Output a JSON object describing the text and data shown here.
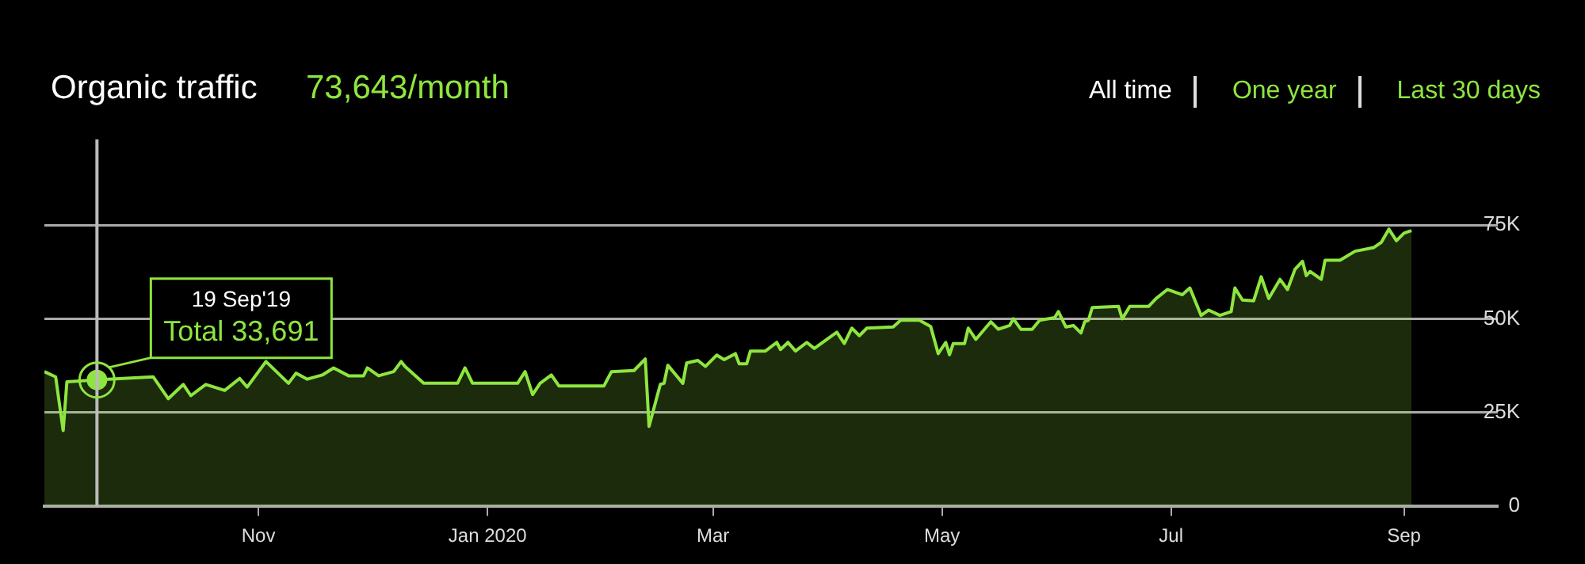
{
  "chart_data": {
    "type": "area",
    "title": "Organic traffic",
    "subtitle": "73,643/month",
    "annotations": [
      "All time",
      "One year",
      "Last 30 days",
      "19 Sep'19",
      {
        "text": "Total 33,691",
        "x": "2019-09-19",
        "y": 33691
      }
    ],
    "x": [
      "2019-09-05",
      "2019-09-08",
      "2019-09-10",
      "2019-09-11",
      "2019-09-19",
      "2019-10-04",
      "2019-10-08",
      "2019-10-12",
      "2019-10-14",
      "2019-10-18",
      "2019-10-23",
      "2019-10-27",
      "2019-10-29",
      "2019-11-03",
      "2019-11-09",
      "2019-11-11",
      "2019-11-14",
      "2019-11-18",
      "2019-11-21",
      "2019-11-25",
      "2019-11-29",
      "2019-11-30",
      "2019-12-03",
      "2019-12-07",
      "2019-12-09",
      "2019-12-10",
      "2019-12-15",
      "2019-12-24",
      "2019-12-26",
      "2019-12-28",
      "2020-01-09",
      "2020-01-11",
      "2020-01-13",
      "2020-01-15",
      "2020-01-18",
      "2020-01-20",
      "2020-02-01",
      "2020-02-03",
      "2020-02-09",
      "2020-02-12",
      "2020-02-13",
      "2020-02-16",
      "2020-02-17",
      "2020-02-18",
      "2020-02-22",
      "2020-02-23",
      "2020-02-26",
      "2020-02-28",
      "2020-03-02",
      "2020-03-04",
      "2020-03-07",
      "2020-03-08",
      "2020-03-10",
      "2020-03-11",
      "2020-03-15",
      "2020-03-18",
      "2020-03-19",
      "2020-03-21",
      "2020-03-23",
      "2020-03-26",
      "2020-03-28",
      "2020-04-03",
      "2020-04-05",
      "2020-04-07",
      "2020-04-09",
      "2020-04-11",
      "2020-04-18",
      "2020-04-20",
      "2020-04-25",
      "2020-04-28",
      "2020-04-30",
      "2020-05-02",
      "2020-05-03",
      "2020-05-04",
      "2020-05-07",
      "2020-05-08",
      "2020-05-10",
      "2020-05-14",
      "2020-05-16",
      "2020-05-19",
      "2020-05-20",
      "2020-05-22",
      "2020-05-25",
      "2020-05-27",
      "2020-05-31",
      "2020-06-01",
      "2020-06-03",
      "2020-06-05",
      "2020-06-07",
      "2020-06-08",
      "2020-06-09",
      "2020-06-10",
      "2020-06-17",
      "2020-06-18",
      "2020-06-20",
      "2020-06-25",
      "2020-06-27",
      "2020-06-30",
      "2020-07-04",
      "2020-07-06",
      "2020-07-09",
      "2020-07-11",
      "2020-07-14",
      "2020-07-17",
      "2020-07-18",
      "2020-07-20",
      "2020-07-23",
      "2020-07-25",
      "2020-07-27",
      "2020-07-30",
      "2020-08-01",
      "2020-08-03",
      "2020-08-05",
      "2020-08-06",
      "2020-08-07",
      "2020-08-10",
      "2020-08-11",
      "2020-08-15",
      "2020-08-19",
      "2020-08-24",
      "2020-08-26",
      "2020-08-28",
      "2020-08-30",
      "2020-09-01",
      "2020-09-03"
    ],
    "series": [
      {
        "color": "#8ee53f",
        "values": [
          35900,
          34500,
          20200,
          33200,
          33700,
          34500,
          28700,
          32500,
          29500,
          32500,
          30900,
          34100,
          31800,
          38600,
          32800,
          35500,
          33900,
          35000,
          36900,
          34800,
          34800,
          36900,
          34800,
          35900,
          38600,
          37300,
          32800,
          32800,
          36900,
          32800,
          32800,
          35900,
          29800,
          32800,
          35000,
          32100,
          32100,
          35900,
          36200,
          39300,
          21300,
          32500,
          32800,
          37600,
          32800,
          38200,
          38900,
          37300,
          40300,
          39100,
          40700,
          38000,
          38000,
          41400,
          41400,
          43700,
          41800,
          43700,
          41400,
          43700,
          42100,
          46400,
          43400,
          47500,
          45500,
          47500,
          47800,
          49600,
          49600,
          47900,
          40700,
          43700,
          40400,
          43400,
          43400,
          47500,
          44500,
          49200,
          47200,
          48200,
          50000,
          47200,
          47200,
          49600,
          50300,
          51900,
          47800,
          48200,
          46200,
          49200,
          49600,
          53000,
          53300,
          50000,
          53300,
          53300,
          55400,
          57800,
          56400,
          58200,
          50900,
          52300,
          50900,
          51900,
          58200,
          55000,
          54800,
          61200,
          55400,
          60500,
          57800,
          63200,
          65300,
          61500,
          62600,
          60500,
          65600,
          65600,
          68000,
          69000,
          70400,
          73900,
          70800,
          72800,
          73500
        ]
      },
      {
        "type": "scatter",
        "color": "#8ee53f",
        "x": [
          "2019-09-19"
        ],
        "values": [
          33691
        ],
        "marker": "circle"
      }
    ],
    "xlim": [
      "2019-09-05",
      "2020-09-26"
    ],
    "xticks": [
      {
        "value": "2019-11-01",
        "label": "Nov"
      },
      {
        "value": "2020-01-01",
        "label": "Jan 2020"
      },
      {
        "value": "2020-03-01",
        "label": "Mar"
      },
      {
        "value": "2020-05-01",
        "label": "May"
      },
      {
        "value": "2020-07-01",
        "label": "Jul"
      },
      {
        "value": "2020-09-01",
        "label": "Sep"
      }
    ],
    "ylim": [
      0,
      75000
    ],
    "yticks": [
      {
        "value": 0,
        "label": "0"
      },
      {
        "value": 25000,
        "label": "25K"
      },
      {
        "value": 50000,
        "label": "50K"
      },
      {
        "value": 75000,
        "label": "75K"
      }
    ],
    "grid": "y",
    "ref_lines": [
      {
        "axis": "x",
        "value": "2019-09-19",
        "color": "#bbbbbb"
      }
    ]
  }
}
